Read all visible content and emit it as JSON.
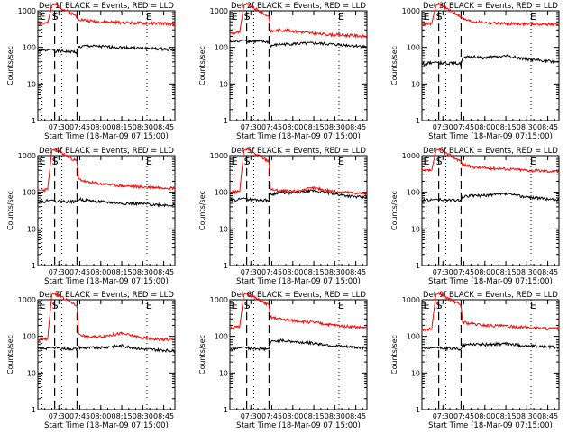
{
  "figure": {
    "ylabel": "Counts/sec",
    "xlabel": "Start Time (18-Mar-09 07:15:00)",
    "marker_E": "E",
    "marker_S": "S",
    "colors": {
      "events": "#000000",
      "lld": "#ff0000"
    }
  },
  "chart_data": [
    {
      "type": "line",
      "title": "Det 1f BLACK = Events, RED = LLD",
      "yscale": "log",
      "ylim": [
        1,
        1000
      ],
      "xlim": [
        "07:15",
        "08:53"
      ],
      "xticks": [
        "07:30",
        "07:45",
        "08:00",
        "08:15",
        "08:30",
        "08:45"
      ],
      "yticks": [
        "1",
        "10",
        "100",
        "1000"
      ],
      "grid": false,
      "vlines_dashed": [
        "07:27",
        "07:43"
      ],
      "vlines_dotted": [
        "07:18",
        "07:32",
        "08:33"
      ],
      "series": [
        {
          "name": "Events",
          "x": [
            "07:15",
            "07:22",
            "07:25",
            "07:27",
            "07:43",
            "07:44",
            "07:50",
            "08:00",
            "08:15",
            "08:30",
            "08:45",
            "08:53"
          ],
          "values": [
            80,
            85,
            90,
            80,
            75,
            100,
            110,
            105,
            100,
            95,
            90,
            88
          ]
        },
        {
          "name": "LLD",
          "x": [
            "07:15",
            "07:22",
            "07:25",
            "07:27",
            "07:43",
            "07:44",
            "07:50",
            "08:00",
            "08:15",
            "08:30",
            "08:45",
            "08:53"
          ],
          "values": [
            440,
            460,
            1400,
            1500,
            700,
            600,
            540,
            500,
            480,
            460,
            450,
            440
          ]
        }
      ]
    },
    {
      "type": "line",
      "title": "Det 2f BLACK = Events, RED = LLD",
      "yscale": "log",
      "ylim": [
        1,
        1000
      ],
      "xlim": [
        "07:15",
        "08:53"
      ],
      "xticks": [
        "07:30",
        "07:45",
        "08:00",
        "08:15",
        "08:30",
        "08:45"
      ],
      "yticks": [
        "1",
        "10",
        "100",
        "1000"
      ],
      "grid": false,
      "vlines_dashed": [
        "07:27",
        "07:43"
      ],
      "vlines_dotted": [
        "07:18",
        "07:32",
        "08:33"
      ],
      "series": [
        {
          "name": "Events",
          "x": [
            "07:15",
            "07:22",
            "07:25",
            "07:27",
            "07:43",
            "07:44",
            "07:50",
            "08:00",
            "08:15",
            "08:30",
            "08:45",
            "08:53"
          ],
          "values": [
            140,
            150,
            160,
            150,
            140,
            110,
            120,
            125,
            130,
            120,
            110,
            105
          ]
        },
        {
          "name": "LLD",
          "x": [
            "07:15",
            "07:22",
            "07:25",
            "07:27",
            "07:43",
            "07:44",
            "07:50",
            "08:00",
            "08:15",
            "08:30",
            "08:45",
            "08:53"
          ],
          "values": [
            240,
            260,
            1400,
            1500,
            700,
            270,
            300,
            280,
            240,
            220,
            210,
            200
          ]
        }
      ]
    },
    {
      "type": "line",
      "title": "Det 3f BLACK = Events, RED = LLD",
      "yscale": "log",
      "ylim": [
        1,
        1000
      ],
      "xlim": [
        "07:15",
        "08:53"
      ],
      "xticks": [
        "07:30",
        "07:45",
        "08:00",
        "08:15",
        "08:30",
        "08:45"
      ],
      "yticks": [
        "1",
        "10",
        "100",
        "1000"
      ],
      "grid": false,
      "vlines_dashed": [
        "07:27",
        "07:43"
      ],
      "vlines_dotted": [
        "07:18",
        "07:32",
        "08:33"
      ],
      "series": [
        {
          "name": "Events",
          "x": [
            "07:15",
            "07:22",
            "07:25",
            "07:27",
            "07:43",
            "07:44",
            "07:50",
            "08:00",
            "08:15",
            "08:30",
            "08:45",
            "08:53"
          ],
          "values": [
            35,
            38,
            40,
            38,
            36,
            50,
            55,
            52,
            58,
            48,
            42,
            40
          ]
        },
        {
          "name": "LLD",
          "x": [
            "07:15",
            "07:22",
            "07:25",
            "07:27",
            "07:43",
            "07:44",
            "07:50",
            "08:00",
            "08:15",
            "08:30",
            "08:45",
            "08:53"
          ],
          "values": [
            430,
            450,
            1400,
            1500,
            700,
            600,
            520,
            480,
            450,
            440,
            430,
            420
          ]
        }
      ]
    },
    {
      "type": "line",
      "title": "Det 4f BLACK = Events, RED = LLD",
      "yscale": "log",
      "ylim": [
        1,
        1000
      ],
      "xlim": [
        "07:15",
        "08:53"
      ],
      "xticks": [
        "07:30",
        "07:45",
        "08:00",
        "08:15",
        "08:30",
        "08:45"
      ],
      "yticks": [
        "1",
        "10",
        "100",
        "1000"
      ],
      "grid": false,
      "vlines_dashed": [
        "07:27",
        "07:43"
      ],
      "vlines_dotted": [
        "07:18",
        "07:32",
        "08:33"
      ],
      "series": [
        {
          "name": "Events",
          "x": [
            "07:15",
            "07:22",
            "07:25",
            "07:27",
            "07:43",
            "07:44",
            "07:50",
            "08:00",
            "08:15",
            "08:30",
            "08:45",
            "08:53"
          ],
          "values": [
            55,
            58,
            62,
            58,
            55,
            65,
            60,
            55,
            50,
            48,
            45,
            44
          ]
        },
        {
          "name": "LLD",
          "x": [
            "07:15",
            "07:22",
            "07:25",
            "07:27",
            "07:43",
            "07:44",
            "07:50",
            "08:00",
            "08:15",
            "08:30",
            "08:45",
            "08:53"
          ],
          "values": [
            110,
            120,
            1400,
            1500,
            700,
            230,
            190,
            170,
            150,
            140,
            135,
            130
          ]
        }
      ]
    },
    {
      "type": "line",
      "title": "Det 5f BLACK = Events, RED = LLD",
      "yscale": "log",
      "ylim": [
        1,
        1000
      ],
      "xlim": [
        "07:15",
        "08:53"
      ],
      "xticks": [
        "07:30",
        "07:45",
        "08:00",
        "08:15",
        "08:30",
        "08:45"
      ],
      "yticks": [
        "1",
        "10",
        "100",
        "1000"
      ],
      "grid": false,
      "vlines_dashed": [
        "07:27",
        "07:43"
      ],
      "vlines_dotted": [
        "07:18",
        "07:32",
        "08:33"
      ],
      "series": [
        {
          "name": "Events",
          "x": [
            "07:15",
            "07:22",
            "07:25",
            "07:27",
            "07:43",
            "07:44",
            "07:50",
            "08:00",
            "08:15",
            "08:30",
            "08:45",
            "08:53"
          ],
          "values": [
            60,
            65,
            70,
            65,
            60,
            85,
            100,
            95,
            110,
            90,
            75,
            72
          ]
        },
        {
          "name": "LLD",
          "x": [
            "07:15",
            "07:22",
            "07:25",
            "07:27",
            "07:43",
            "07:44",
            "07:50",
            "08:00",
            "08:15",
            "08:30",
            "08:45",
            "08:53"
          ],
          "values": [
            100,
            105,
            1400,
            1500,
            700,
            120,
            110,
            105,
            130,
            105,
            95,
            92
          ]
        }
      ]
    },
    {
      "type": "line",
      "title": "Det 6f BLACK = Events, RED = LLD",
      "yscale": "log",
      "ylim": [
        1,
        1000
      ],
      "xlim": [
        "07:15",
        "08:53"
      ],
      "xticks": [
        "07:30",
        "07:45",
        "08:00",
        "08:15",
        "08:30",
        "08:45"
      ],
      "yticks": [
        "1",
        "10",
        "100",
        "1000"
      ],
      "grid": false,
      "vlines_dashed": [
        "07:27",
        "07:43"
      ],
      "vlines_dotted": [
        "07:18",
        "07:32",
        "08:33"
      ],
      "series": [
        {
          "name": "Events",
          "x": [
            "07:15",
            "07:22",
            "07:25",
            "07:27",
            "07:43",
            "07:44",
            "07:50",
            "08:00",
            "08:15",
            "08:30",
            "08:45",
            "08:53"
          ],
          "values": [
            60,
            62,
            65,
            62,
            60,
            75,
            80,
            82,
            90,
            75,
            65,
            62
          ]
        },
        {
          "name": "LLD",
          "x": [
            "07:15",
            "07:22",
            "07:25",
            "07:27",
            "07:43",
            "07:44",
            "07:50",
            "08:00",
            "08:15",
            "08:30",
            "08:45",
            "08:53"
          ],
          "values": [
            380,
            400,
            1400,
            1500,
            700,
            580,
            500,
            460,
            440,
            400,
            380,
            360
          ]
        }
      ]
    },
    {
      "type": "line",
      "title": "Det 7f BLACK = Events, RED = LLD",
      "yscale": "log",
      "ylim": [
        1,
        1000
      ],
      "xlim": [
        "07:15",
        "08:53"
      ],
      "xticks": [
        "07:30",
        "07:45",
        "08:00",
        "08:15",
        "08:30",
        "08:45"
      ],
      "yticks": [
        "1",
        "10",
        "100",
        "1000"
      ],
      "grid": false,
      "vlines_dashed": [
        "07:27",
        "07:43"
      ],
      "vlines_dotted": [
        "07:18",
        "07:32",
        "08:33"
      ],
      "series": [
        {
          "name": "Events",
          "x": [
            "07:15",
            "07:22",
            "07:25",
            "07:27",
            "07:43",
            "07:44",
            "07:50",
            "08:00",
            "08:15",
            "08:30",
            "08:45",
            "08:53"
          ],
          "values": [
            45,
            48,
            50,
            48,
            45,
            50,
            48,
            50,
            55,
            45,
            42,
            40
          ]
        },
        {
          "name": "LLD",
          "x": [
            "07:15",
            "07:22",
            "07:25",
            "07:27",
            "07:43",
            "07:44",
            "07:50",
            "08:00",
            "08:15",
            "08:30",
            "08:45",
            "08:53"
          ],
          "values": [
            80,
            85,
            1400,
            1500,
            700,
            120,
            95,
            100,
            120,
            90,
            82,
            80
          ]
        }
      ]
    },
    {
      "type": "line",
      "title": "Det 8f BLACK = Events, RED = LLD",
      "yscale": "log",
      "ylim": [
        1,
        1000
      ],
      "xlim": [
        "07:15",
        "08:53"
      ],
      "xticks": [
        "07:30",
        "07:45",
        "08:00",
        "08:15",
        "08:30",
        "08:45"
      ],
      "yticks": [
        "1",
        "10",
        "100",
        "1000"
      ],
      "grid": false,
      "vlines_dashed": [
        "07:27",
        "07:43"
      ],
      "vlines_dotted": [
        "07:18",
        "07:32",
        "08:33"
      ],
      "series": [
        {
          "name": "Events",
          "x": [
            "07:15",
            "07:22",
            "07:25",
            "07:27",
            "07:43",
            "07:44",
            "07:50",
            "08:00",
            "08:15",
            "08:30",
            "08:45",
            "08:53"
          ],
          "values": [
            45,
            48,
            52,
            48,
            45,
            70,
            78,
            72,
            65,
            55,
            50,
            48
          ]
        },
        {
          "name": "LLD",
          "x": [
            "07:15",
            "07:22",
            "07:25",
            "07:27",
            "07:43",
            "07:44",
            "07:50",
            "08:00",
            "08:15",
            "08:30",
            "08:45",
            "08:53"
          ],
          "values": [
            170,
            180,
            1400,
            1500,
            700,
            330,
            300,
            270,
            240,
            200,
            180,
            170
          ]
        }
      ]
    },
    {
      "type": "line",
      "title": "Det 9f BLACK = Events, RED = LLD",
      "yscale": "log",
      "ylim": [
        1,
        1000
      ],
      "xlim": [
        "07:15",
        "08:53"
      ],
      "xticks": [
        "07:30",
        "07:45",
        "08:00",
        "08:15",
        "08:30",
        "08:45"
      ],
      "yticks": [
        "1",
        "10",
        "100",
        "1000"
      ],
      "grid": false,
      "vlines_dashed": [
        "07:27",
        "07:43"
      ],
      "vlines_dotted": [
        "07:18",
        "07:32",
        "08:33"
      ],
      "series": [
        {
          "name": "Events",
          "x": [
            "07:15",
            "07:22",
            "07:25",
            "07:27",
            "07:43",
            "07:44",
            "07:50",
            "08:00",
            "08:15",
            "08:30",
            "08:45",
            "08:53"
          ],
          "values": [
            45,
            48,
            50,
            48,
            45,
            55,
            62,
            60,
            62,
            55,
            52,
            50
          ]
        },
        {
          "name": "LLD",
          "x": [
            "07:15",
            "07:22",
            "07:25",
            "07:27",
            "07:43",
            "07:44",
            "07:50",
            "08:00",
            "08:15",
            "08:30",
            "08:45",
            "08:53"
          ],
          "values": [
            150,
            160,
            1400,
            1500,
            700,
            250,
            220,
            200,
            190,
            175,
            165,
            160
          ]
        }
      ]
    }
  ]
}
